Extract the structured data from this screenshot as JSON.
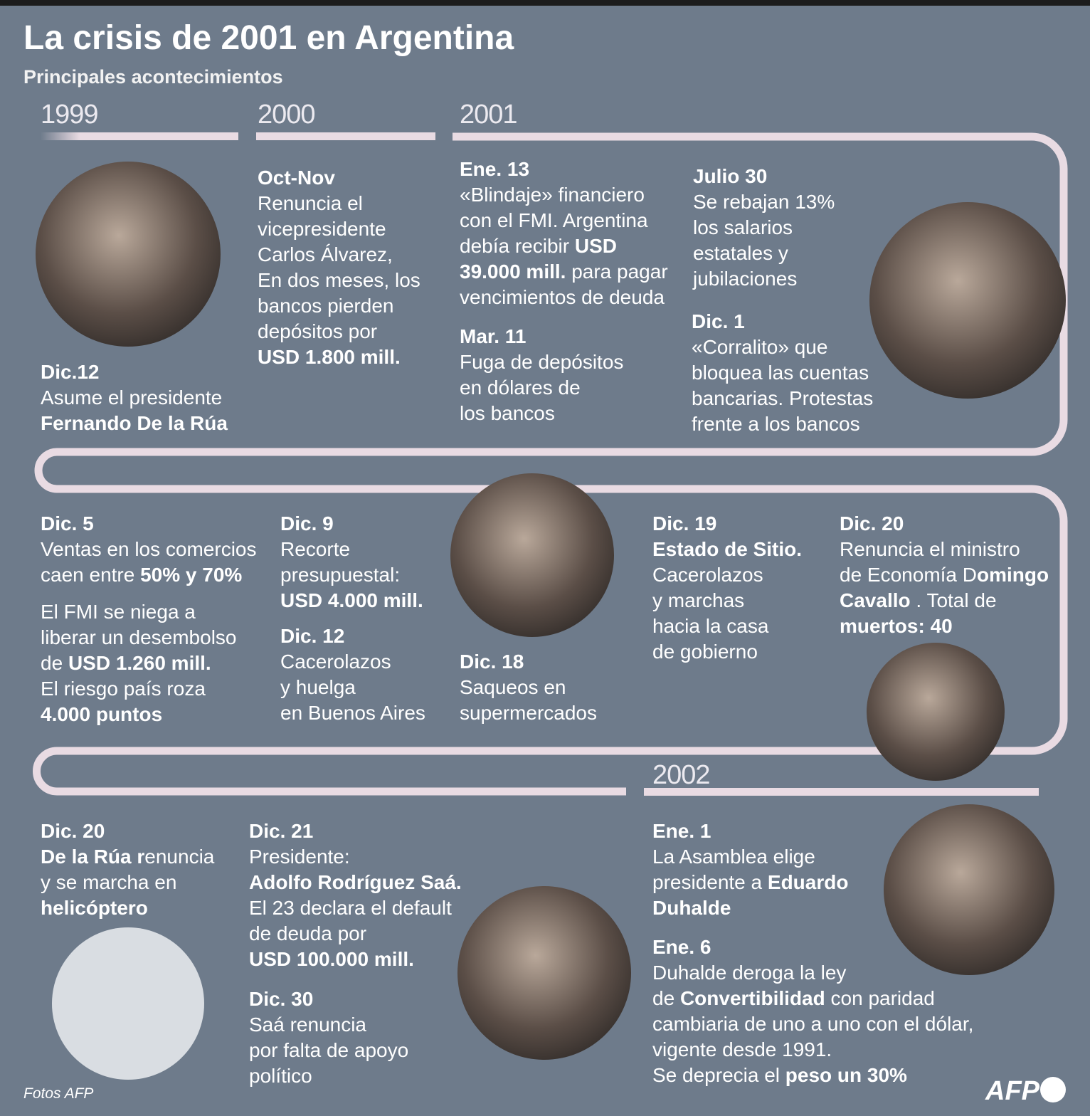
{
  "header": {
    "title": "La crisis de 2001 en Argentina",
    "subtitle": "Principales acontecimientos"
  },
  "years": [
    "1999",
    "2000",
    "2001",
    "2002"
  ],
  "events": [
    {
      "date": "Dic.12",
      "lines": [
        "Asume  el presidente",
        [
          {
            "b": "Fernando De la Rúa"
          }
        ]
      ]
    },
    {
      "date": "Oct-Nov",
      "lines": [
        "Renuncia el",
        "vicepresidente",
        "Carlos Álvarez,",
        "En dos meses, los",
        "bancos pierden",
        "depósitos por",
        [
          {
            "b": "USD 1.800 mill."
          }
        ]
      ]
    },
    {
      "date": "Ene. 13",
      "lines": [
        "«Blindaje» financiero",
        "con el FMI. Argentina",
        [
          {
            "t": "debía recibir "
          },
          {
            "b": "USD"
          }
        ],
        [
          {
            "b": "39.000 mill."
          },
          {
            "t": " para pagar"
          }
        ],
        "vencimientos de deuda"
      ]
    },
    {
      "date": "Mar. 11",
      "lines": [
        "Fuga de depósitos",
        "en dólares de",
        "los bancos"
      ]
    },
    {
      "date": "Julio 30",
      "lines": [
        "Se rebajan 13%",
        "los salarios",
        "estatales y",
        "jubilaciones"
      ]
    },
    {
      "date": "Dic. 1",
      "lines": [
        "«Corralito» que",
        "bloquea las cuentas",
        "bancarias. Protestas",
        "frente a los bancos"
      ]
    },
    {
      "date": "Dic. 5",
      "lines": [
        "Ventas en los comercios",
        [
          {
            "t": "caen entre "
          },
          {
            "b": "50% y 70%"
          }
        ]
      ]
    },
    {
      "lines": [
        "El FMI se niega a",
        "liberar un desembolso",
        [
          {
            "t": "de "
          },
          {
            "b": "USD 1.260 mill."
          }
        ],
        "El riesgo país roza",
        [
          {
            "b": "4.000 puntos"
          }
        ]
      ]
    },
    {
      "date": "Dic. 9",
      "lines": [
        "Recorte",
        "presupuestal:",
        [
          {
            "b": "USD 4.000 mill."
          }
        ]
      ]
    },
    {
      "date": "Dic. 12",
      "lines": [
        "Cacerolazos",
        "y huelga",
        "en Buenos Aires"
      ]
    },
    {
      "date": "Dic. 18",
      "lines": [
        "Saqueos en",
        "supermercados"
      ]
    },
    {
      "date": "Dic. 19",
      "lines": [
        [
          {
            "b": "Estado de Sitio."
          }
        ],
        "Cacerolazos",
        "y marchas",
        "hacia la casa",
        "de gobierno"
      ]
    },
    {
      "date": "Dic. 20",
      "lines": [
        "Renuncia el ministro",
        [
          {
            "t": "de Economía D"
          },
          {
            "b": "omingo"
          }
        ],
        [
          {
            "b": "Cavallo"
          },
          {
            "t": " . Total de"
          }
        ],
        [
          {
            "b": "muertos: 40"
          }
        ]
      ]
    },
    {
      "date": "Dic. 20",
      "lines": [
        [
          {
            "b": "De la Rúa r"
          },
          {
            "t": "enuncia"
          }
        ],
        "y se marcha en",
        [
          {
            "b": "helicóptero"
          }
        ]
      ]
    },
    {
      "date": "Dic. 21",
      "lines": [
        "Presidente:",
        [
          {
            "b": "Adolfo Rodríguez Saá."
          }
        ],
        "El 23 declara el default",
        "de deuda por",
        [
          {
            "b": "USD 100.000 mill."
          }
        ]
      ]
    },
    {
      "date": "Dic. 30",
      "lines": [
        "Saá renuncia",
        "por falta de apoyo",
        "político"
      ]
    },
    {
      "date": "Ene. 1",
      "lines": [
        "La Asamblea elige",
        [
          {
            "t": "presidente a "
          },
          {
            "b": "Eduardo"
          }
        ],
        [
          {
            "b": "Duhalde"
          }
        ]
      ]
    },
    {
      "date": "Ene. 6",
      "lines": [
        "Duhalde deroga la ley",
        [
          {
            "t": "de "
          },
          {
            "b": "Convertibilidad"
          },
          {
            "t": " con paridad"
          }
        ],
        "cambiaria de uno a uno con el dólar,",
        "vigente desde 1991.",
        [
          {
            "t": "Se deprecia el "
          },
          {
            "b": "peso un 30%"
          }
        ]
      ]
    }
  ],
  "footer": {
    "credit": "Fotos AFP",
    "logo": "AFP"
  }
}
